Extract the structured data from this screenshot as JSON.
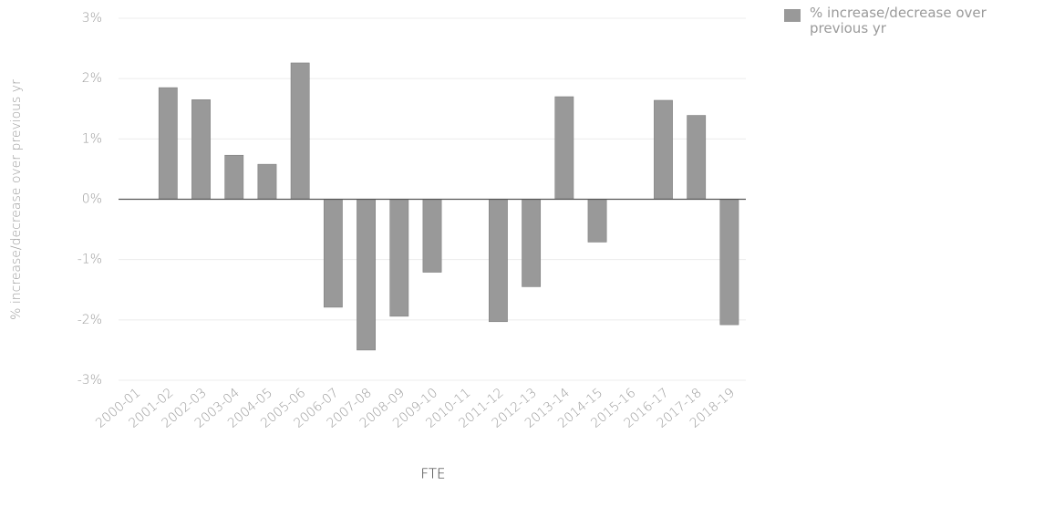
{
  "chart_data": {
    "type": "bar",
    "x_label": "FTE",
    "y_label": "% increase/decrease over previous yr",
    "categories": [
      "2000-01",
      "2001-02",
      "2002-03",
      "2003-04",
      "2004-05",
      "2005-06",
      "2006-07",
      "2007-08",
      "2008-09",
      "2009-10",
      "2010-11",
      "2011-12",
      "2012-13",
      "2013-14",
      "2014-15",
      "2015-16",
      "2016-17",
      "2017-18",
      "2018-19"
    ],
    "series": [
      {
        "name": "% increase/decrease over previous yr",
        "color": "#999999",
        "values": [
          null,
          1.85,
          1.65,
          0.73,
          0.58,
          2.26,
          -1.79,
          -2.5,
          -1.94,
          -1.21,
          0,
          -2.03,
          -1.45,
          1.7,
          -0.71,
          0,
          1.64,
          1.39,
          -2.08
        ]
      }
    ],
    "ylim": [
      -3,
      3
    ],
    "yticks": [
      {
        "value": -3,
        "label": "-3%"
      },
      {
        "value": -2,
        "label": "-2%"
      },
      {
        "value": -1,
        "label": "-1%"
      },
      {
        "value": 0,
        "label": "0%"
      },
      {
        "value": 1,
        "label": "1%"
      },
      {
        "value": 2,
        "label": "2%"
      },
      {
        "value": 3,
        "label": "3%"
      }
    ],
    "grid": true,
    "legend": "top-right"
  }
}
